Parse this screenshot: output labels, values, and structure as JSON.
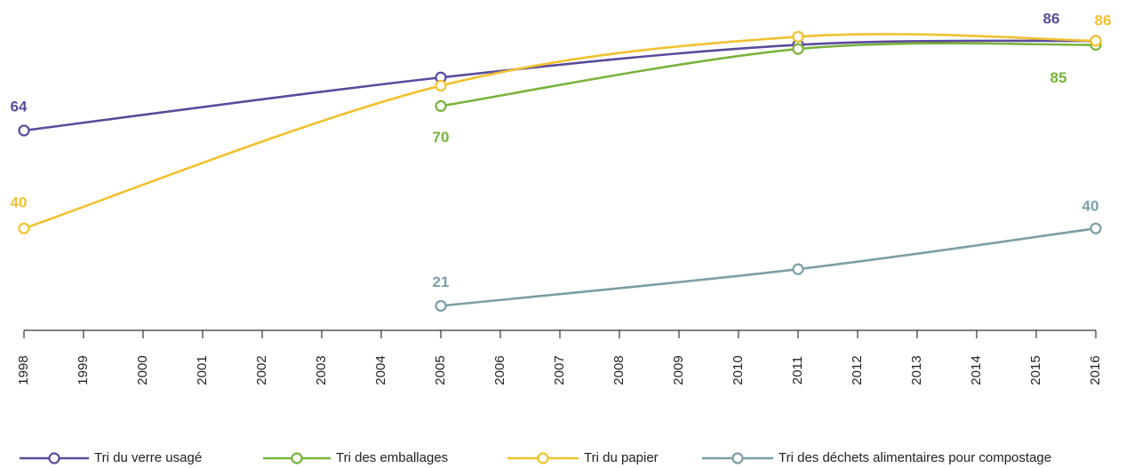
{
  "chart_data": {
    "type": "line",
    "x": [
      1998,
      2005,
      2011,
      2016
    ],
    "xlim": [
      1998,
      2016
    ],
    "xticks": [
      1998,
      1999,
      2000,
      2001,
      2002,
      2003,
      2004,
      2005,
      2006,
      2007,
      2008,
      2009,
      2010,
      2011,
      2012,
      2013,
      2014,
      2015,
      2016
    ],
    "ylim": [
      15,
      96
    ],
    "series": [
      {
        "name": "Tri du verre usagé",
        "color": "#5b4b9c",
        "values": [
          64,
          77,
          85,
          86
        ],
        "value_labels": [
          "64",
          null,
          null,
          "86"
        ]
      },
      {
        "name": "Tri des emballages",
        "color": "#78b33c",
        "values": [
          null,
          70,
          84,
          85
        ],
        "value_labels": [
          null,
          "70",
          null,
          "85"
        ]
      },
      {
        "name": "Tri du papier",
        "color": "#f2c12e",
        "values": [
          40,
          75,
          87,
          86
        ],
        "value_labels": [
          "40",
          null,
          null,
          "86"
        ]
      },
      {
        "name": "Tri des déchets alimentaires pour compostage",
        "color": "#7b9fa6",
        "values": [
          null,
          21,
          30,
          40
        ],
        "value_labels": [
          null,
          "21",
          null,
          "40"
        ]
      }
    ]
  }
}
